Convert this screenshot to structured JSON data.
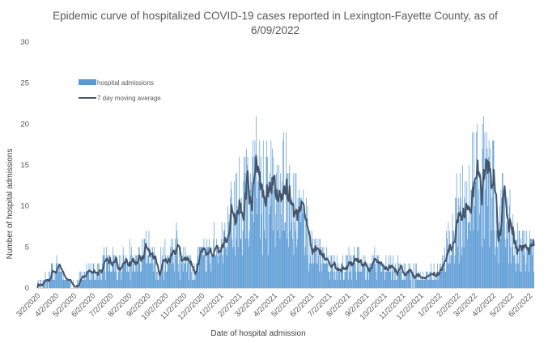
{
  "chart_data": {
    "type": "bar",
    "title_line1": "Epidemic curve of hospitalized COVID-19 cases reported in Lexington-Fayette County, as of",
    "title_line2": "6/09/2022",
    "xlabel": "Date of hospital admission",
    "ylabel": "Number of hospital admissions",
    "ylim": [
      0,
      30
    ],
    "yticks": [
      0,
      5,
      10,
      15,
      20,
      25,
      30
    ],
    "grid": false,
    "legend_position": "top-left",
    "start_date": "3/2/2020",
    "end_date": "6/9/2022",
    "x_tick_labels": [
      "3/2/2020",
      "4/2/2020",
      "5/2/2020",
      "6/2/2020",
      "7/2/2020",
      "8/2/2020",
      "9/2/2020",
      "10/2/2020",
      "11/2/2020",
      "12/2/2020",
      "1/2/2021",
      "2/2/2021",
      "3/2/2021",
      "4/2/2021",
      "5/2/2021",
      "6/2/2021",
      "7/2/2021",
      "8/2/2021",
      "9/2/2021",
      "10/2/2021",
      "11/2/2021",
      "12/2/2021",
      "1/2/2022",
      "2/2/2022",
      "3/2/2022",
      "4/2/2022",
      "5/2/2022",
      "6/2/2022"
    ],
    "series": [
      {
        "name": "hospital admissions",
        "kind": "bar",
        "color": "#5b9bd5",
        "weekly_average_values": [
          0.4,
          0.8,
          1.5,
          2.3,
          2.5,
          1.8,
          1.2,
          0.8,
          0.5,
          0.6,
          1.2,
          2.0,
          2.2,
          1.8,
          1.9,
          2.6,
          3.1,
          3.3,
          3.0,
          3.2,
          3.6,
          3.8,
          3.2,
          3.1,
          3.6,
          4.1,
          4.3,
          3.5,
          2.9,
          3.1,
          3.9,
          4.6,
          4.9,
          4.3,
          3.4,
          3.0,
          2.7,
          2.7,
          3.1,
          3.6,
          4.2,
          4.6,
          5.1,
          5.6,
          6.2,
          7.3,
          8.5,
          9.6,
          10.6,
          11.6,
          12.5,
          13.1,
          12.8,
          12.1,
          11.4,
          10.9,
          10.5,
          10.9,
          11.7,
          11.6,
          10.4,
          9.1,
          8.1,
          7.3,
          6.5,
          5.4,
          4.3,
          3.6,
          3.4,
          3.2,
          2.9,
          2.6,
          2.5,
          2.7,
          3.0,
          3.3,
          3.3,
          3.1,
          2.8,
          2.7,
          3.0,
          3.1,
          2.8,
          2.6,
          2.5,
          2.3,
          2.0,
          1.8,
          1.6,
          1.5,
          1.4,
          1.3,
          1.3,
          1.4,
          1.6,
          2.2,
          3.3,
          4.7,
          6.4,
          7.9,
          9.2,
          10.4,
          11.2,
          11.8,
          12.4,
          12.8,
          12.7,
          12.2,
          11.4,
          10.4,
          9.3,
          8.2,
          7.3,
          6.6,
          5.9,
          5.3,
          4.8,
          4.4,
          4.0,
          3.7,
          3.9,
          4.2,
          4.4,
          4.3,
          4.6,
          5.0,
          5.6,
          6.3,
          6.8,
          7.8,
          9.6,
          12.6,
          16.0,
          18.6,
          19.2,
          16.5,
          12.4,
          9.2,
          7.1,
          5.8,
          4.9,
          4.3,
          3.7,
          3.2,
          2.7,
          2.3,
          2.0,
          1.8,
          1.6,
          1.4,
          1.4,
          1.5,
          1.8,
          2.3,
          2.8,
          3.3,
          3.6,
          3.8,
          3.9,
          3.8,
          3.8
        ]
      },
      {
        "name": "7 day moving average",
        "kind": "line",
        "color": "#44546a"
      }
    ]
  }
}
